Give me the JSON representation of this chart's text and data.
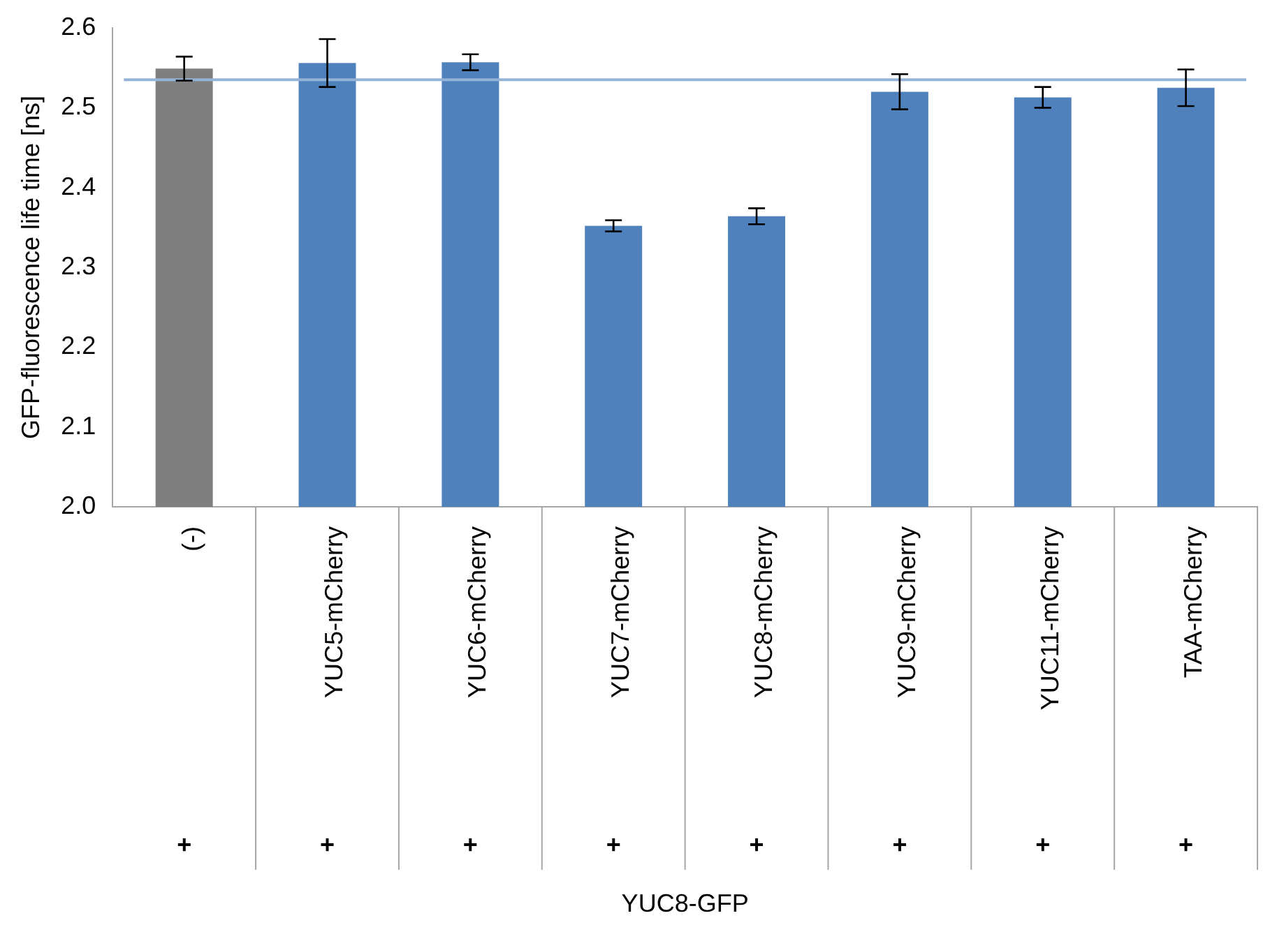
{
  "chart_data": {
    "type": "bar",
    "ylabel": "GFP-fluorescence life time [ns]",
    "categories": [
      "(-)",
      "YUC5-mCherry",
      "YUC6-mCherry",
      "YUC7-mCherry",
      "YUC8-mCherry",
      "YUC9-mCherry",
      "YUC11-mCherry",
      "TAA-mCherry"
    ],
    "values": [
      2.549,
      2.556,
      2.557,
      2.352,
      2.364,
      2.52,
      2.513,
      2.525
    ],
    "errors": [
      0.015,
      0.03,
      0.01,
      0.007,
      0.01,
      0.022,
      0.013,
      0.023
    ],
    "colors": [
      "#7f7f7f",
      "#4f81bd",
      "#4f81bd",
      "#4f81bd",
      "#4f81bd",
      "#4f81bd",
      "#4f81bd",
      "#4f81bd"
    ],
    "ylim": [
      2.0,
      2.6
    ],
    "yticks": [
      {
        "value": 2.0,
        "label": "2.0"
      },
      2.1,
      2.2,
      2.3,
      2.4,
      2.5,
      2.6
    ],
    "ref_lines": [
      {
        "axis": "y",
        "value": 2.535,
        "color": "#95b3d7"
      }
    ],
    "annotations": [
      "+",
      "+",
      "+",
      "+",
      "+",
      "+",
      "+",
      "+",
      "YUC8-GFP"
    ],
    "grid": false,
    "legend": false
  }
}
